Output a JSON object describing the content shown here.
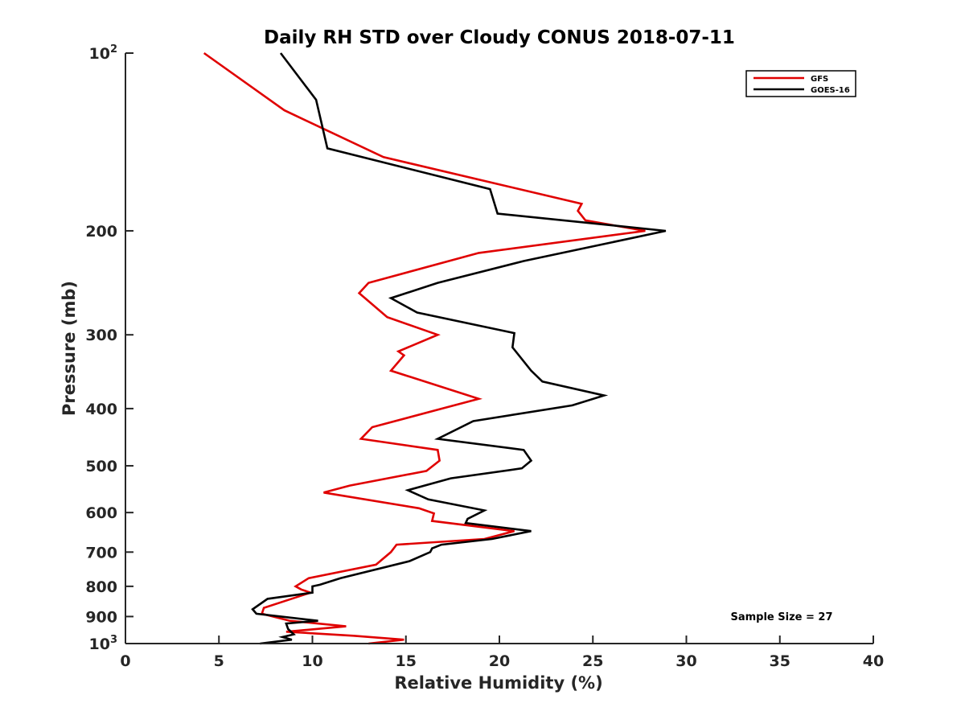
{
  "chart_data": {
    "type": "line",
    "title": "Daily RH STD over Cloudy CONUS 2018-07-11",
    "xlabel": "Relative Humidity (%)",
    "ylabel": "Pressure (mb)",
    "xlim": [
      0,
      40
    ],
    "ylim": [
      100,
      1000
    ],
    "y_scale": "log",
    "y_direction": "reversed",
    "grid": false,
    "legend_position": "top-right",
    "x_ticks": [
      0,
      5,
      10,
      15,
      20,
      25,
      30,
      35,
      40
    ],
    "y_ticks": [
      {
        "value": 100,
        "base": "10",
        "exp": "2"
      },
      {
        "value": 200,
        "label": "200"
      },
      {
        "value": 300,
        "label": "300"
      },
      {
        "value": 400,
        "label": "400"
      },
      {
        "value": 500,
        "label": "500"
      },
      {
        "value": 600,
        "label": "600"
      },
      {
        "value": 700,
        "label": "700"
      },
      {
        "value": 800,
        "label": "800"
      },
      {
        "value": 900,
        "label": "900"
      },
      {
        "value": 1000,
        "base": "10",
        "exp": "3"
      }
    ],
    "annotation": "Sample Size = 27",
    "series": [
      {
        "name": "GFS",
        "color": "#e00000",
        "points": [
          [
            4.2,
            100
          ],
          [
            8.5,
            125
          ],
          [
            13.8,
            150
          ],
          [
            24.4,
            180
          ],
          [
            24.2,
            185
          ],
          [
            24.6,
            192
          ],
          [
            27.8,
            200
          ],
          [
            18.9,
            218
          ],
          [
            13.0,
            245
          ],
          [
            12.5,
            255
          ],
          [
            14.0,
            280
          ],
          [
            16.7,
            300
          ],
          [
            14.6,
            320
          ],
          [
            14.9,
            325
          ],
          [
            14.2,
            345
          ],
          [
            18.9,
            385
          ],
          [
            13.2,
            430
          ],
          [
            12.6,
            450
          ],
          [
            16.7,
            470
          ],
          [
            16.8,
            490
          ],
          [
            16.1,
            510
          ],
          [
            12.0,
            540
          ],
          [
            10.6,
            555
          ],
          [
            15.7,
            590
          ],
          [
            16.5,
            602
          ],
          [
            16.4,
            620
          ],
          [
            20.8,
            645
          ],
          [
            19.2,
            665
          ],
          [
            14.5,
            680
          ],
          [
            14.2,
            700
          ],
          [
            13.4,
            735
          ],
          [
            9.8,
            775
          ],
          [
            9.1,
            800
          ],
          [
            9.4,
            810
          ],
          [
            9.9,
            820
          ],
          [
            7.4,
            870
          ],
          [
            7.3,
            890
          ],
          [
            8.8,
            915
          ],
          [
            11.8,
            935
          ],
          [
            8.6,
            955
          ],
          [
            12.2,
            970
          ],
          [
            14.9,
            985
          ],
          [
            13.0,
            1000
          ]
        ]
      },
      {
        "name": "GOES-16",
        "color": "#000000",
        "points": [
          [
            8.3,
            100
          ],
          [
            10.2,
            120
          ],
          [
            10.8,
            145
          ],
          [
            19.5,
            170
          ],
          [
            19.9,
            187
          ],
          [
            28.9,
            200
          ],
          [
            21.3,
            225
          ],
          [
            16.7,
            245
          ],
          [
            14.2,
            260
          ],
          [
            15.6,
            275
          ],
          [
            20.8,
            298
          ],
          [
            20.7,
            315
          ],
          [
            21.7,
            345
          ],
          [
            22.3,
            360
          ],
          [
            25.6,
            380
          ],
          [
            23.9,
            395
          ],
          [
            18.6,
            420
          ],
          [
            16.7,
            450
          ],
          [
            21.3,
            470
          ],
          [
            21.7,
            490
          ],
          [
            21.2,
            505
          ],
          [
            17.4,
            525
          ],
          [
            15.1,
            550
          ],
          [
            16.2,
            570
          ],
          [
            19.2,
            595
          ],
          [
            18.3,
            615
          ],
          [
            18.2,
            625
          ],
          [
            21.7,
            645
          ],
          [
            19.6,
            665
          ],
          [
            16.9,
            680
          ],
          [
            16.4,
            690
          ],
          [
            16.3,
            700
          ],
          [
            15.2,
            725
          ],
          [
            11.5,
            775
          ],
          [
            10.4,
            795
          ],
          [
            10.0,
            800
          ],
          [
            10.0,
            820
          ],
          [
            7.6,
            840
          ],
          [
            6.8,
            875
          ],
          [
            7.0,
            890
          ],
          [
            10.3,
            915
          ],
          [
            8.6,
            925
          ],
          [
            8.7,
            945
          ],
          [
            9.0,
            965
          ],
          [
            8.4,
            975
          ],
          [
            8.9,
            985
          ],
          [
            7.2,
            1000
          ]
        ]
      }
    ]
  }
}
